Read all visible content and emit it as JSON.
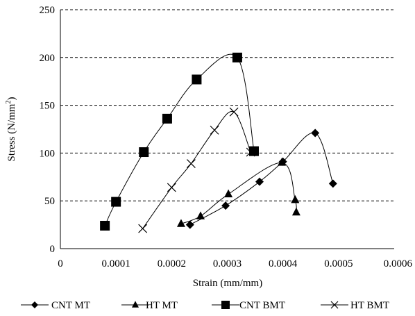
{
  "chart_data": {
    "type": "line",
    "title": "",
    "xlabel": "Strain (mm/mm)",
    "ylabel_main": "Stress (N/mm",
    "ylabel_sup": "2",
    "ylabel_close": ")",
    "xlim": [
      0,
      0.0006
    ],
    "ylim": [
      0,
      250
    ],
    "x_ticks": [
      0,
      0.0001,
      0.0002,
      0.0003,
      0.0004,
      0.0005,
      0.0006
    ],
    "x_tick_labels": [
      "0",
      "0.0001",
      "0.0002",
      "0.0003",
      "0.0004",
      "0.0005",
      "0.0006"
    ],
    "y_ticks": [
      0,
      50,
      100,
      150,
      200,
      250
    ],
    "y_tick_labels": [
      "0",
      "50",
      "100",
      "150",
      "200",
      "250"
    ],
    "grid": "horizontal dashed",
    "legend_position": "bottom",
    "series": [
      {
        "name": "CNT MT",
        "marker": "diamond",
        "color": "#000000",
        "points": [
          [
            0.000233,
            25
          ],
          [
            0.000297,
            45
          ],
          [
            0.000358,
            70
          ],
          [
            0.0004,
            91
          ],
          [
            0.000458,
            121
          ],
          [
            0.00049,
            68
          ]
        ]
      },
      {
        "name": "HT MT",
        "marker": "triangle",
        "color": "#000000",
        "points": [
          [
            0.000217,
            26
          ],
          [
            0.000252,
            34
          ],
          [
            0.000302,
            57
          ],
          [
            0.000398,
            90
          ],
          [
            0.000422,
            51
          ],
          [
            0.000424,
            38
          ]
        ]
      },
      {
        "name": "CNT BMT",
        "marker": "square",
        "color": "#000000",
        "points": [
          [
            8e-05,
            24
          ],
          [
            0.0001,
            49
          ],
          [
            0.00015,
            101
          ],
          [
            0.000192,
            136
          ],
          [
            0.000245,
            177
          ],
          [
            0.000318,
            200
          ],
          [
            0.000348,
            102
          ]
        ]
      },
      {
        "name": "HT BMT",
        "marker": "x",
        "color": "#000000",
        "points": [
          [
            0.000148,
            21
          ],
          [
            0.0002,
            64
          ],
          [
            0.000235,
            89
          ],
          [
            0.000277,
            124
          ],
          [
            0.000312,
            143
          ],
          [
            0.000342,
            101
          ]
        ]
      }
    ]
  }
}
